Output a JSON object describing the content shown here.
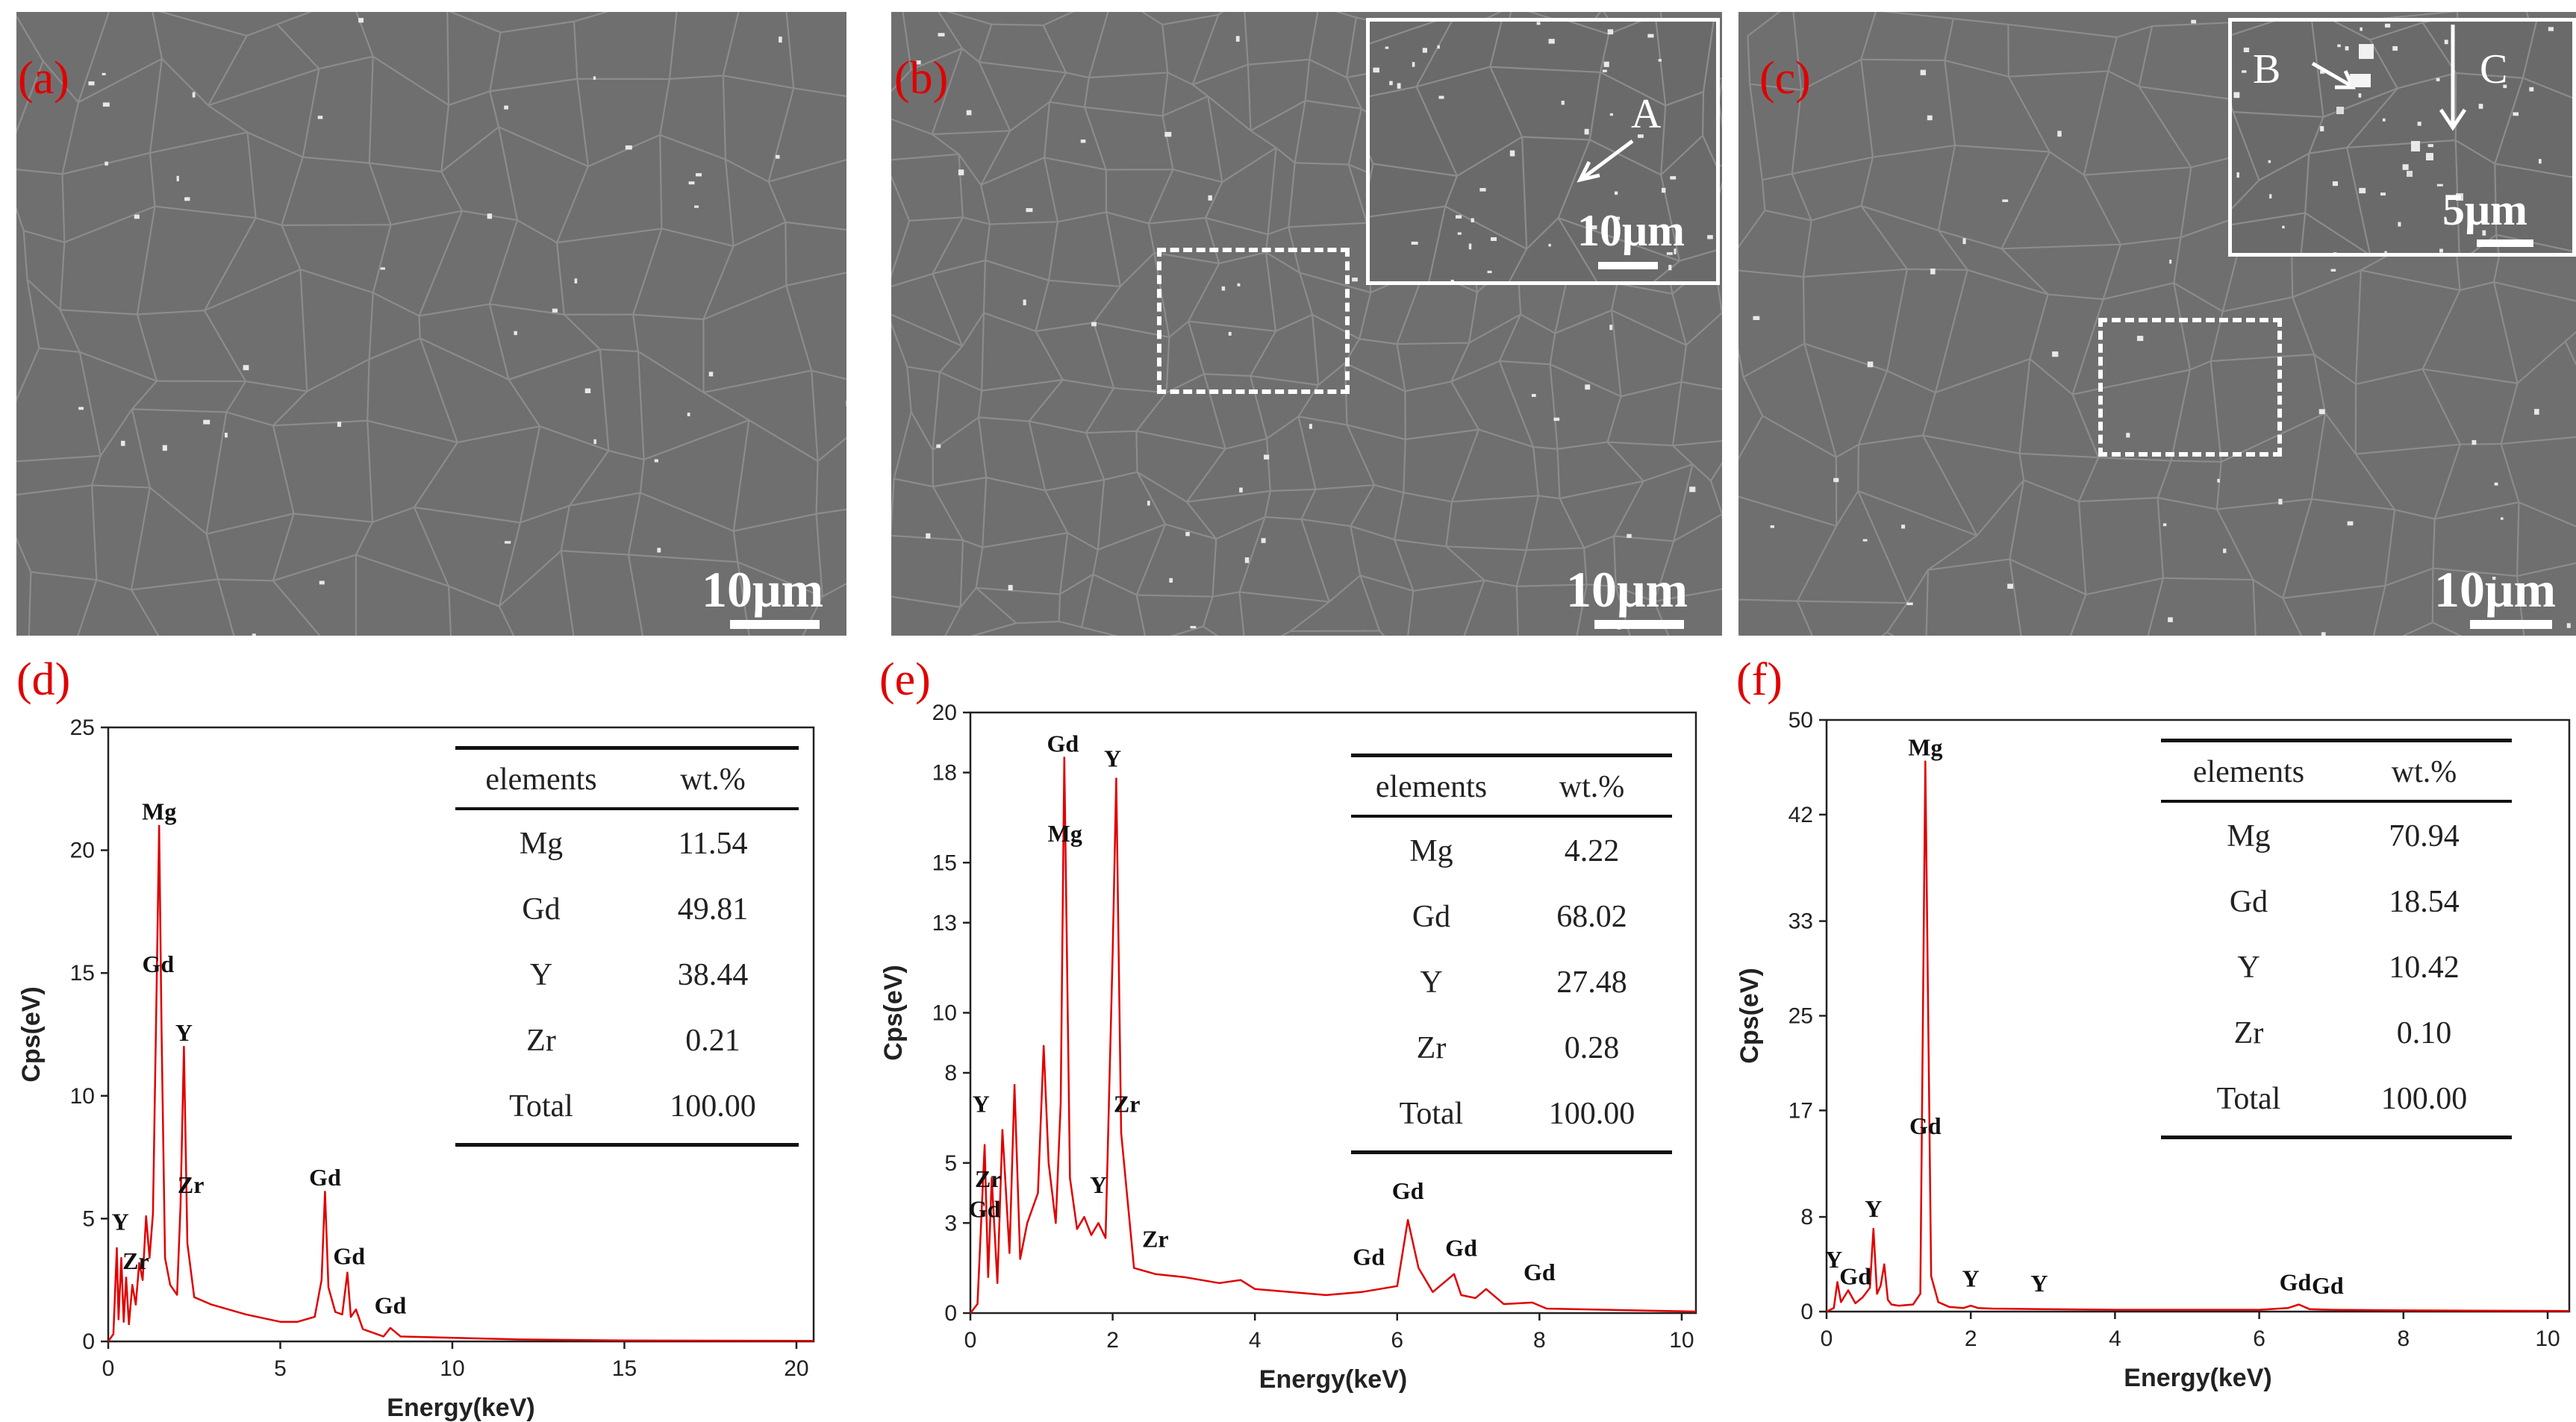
{
  "panels": {
    "a": {
      "label": "(a)",
      "scale_bar": "10μm"
    },
    "b": {
      "label": "(b)",
      "scale_bar": "10μm",
      "inset_scale_bar": "10μm",
      "inset_marker": "A"
    },
    "c": {
      "label": "(c)",
      "scale_bar": "10μm",
      "inset_scale_bar": "5μm",
      "inset_markers": [
        "B",
        "C"
      ]
    },
    "d": {
      "label": "(d)"
    },
    "e": {
      "label": "(e)"
    },
    "f": {
      "label": "(f)"
    }
  },
  "colors": {
    "spectrum": "#e00000",
    "panel_label": "#e00000",
    "sem_background": "#6f6f6f"
  },
  "tables": {
    "header": {
      "col1": "elements",
      "col2": "wt.%"
    },
    "d": [
      {
        "element": "Mg",
        "wt": "11.54"
      },
      {
        "element": "Gd",
        "wt": "49.81"
      },
      {
        "element": "Y",
        "wt": "38.44"
      },
      {
        "element": "Zr",
        "wt": "0.21"
      },
      {
        "element": "Total",
        "wt": "100.00"
      }
    ],
    "e": [
      {
        "element": "Mg",
        "wt": "4.22"
      },
      {
        "element": "Gd",
        "wt": "68.02"
      },
      {
        "element": "Y",
        "wt": "27.48"
      },
      {
        "element": "Zr",
        "wt": "0.28"
      },
      {
        "element": "Total",
        "wt": "100.00"
      }
    ],
    "f": [
      {
        "element": "Mg",
        "wt": "70.94"
      },
      {
        "element": "Gd",
        "wt": "18.54"
      },
      {
        "element": "Y",
        "wt": "10.42"
      },
      {
        "element": "Zr",
        "wt": "0.10"
      },
      {
        "element": "Total",
        "wt": "100.00"
      }
    ]
  },
  "chart_data": [
    {
      "type": "line",
      "panel": "d",
      "xlabel": "Energy(keV)",
      "ylabel": "Cps(eV)",
      "xlim": [
        0,
        20.5
      ],
      "ylim": [
        0,
        25
      ],
      "xticks": [
        0,
        5,
        10,
        15,
        20
      ],
      "yticks": [
        0,
        5,
        10,
        15,
        20,
        25
      ],
      "series": [
        {
          "x": [
            0,
            0.15,
            0.25,
            0.3,
            0.38,
            0.45,
            0.52,
            0.6,
            0.7,
            0.8,
            0.9,
            1.0,
            1.1,
            1.2,
            1.3,
            1.4,
            1.48,
            1.55,
            1.65,
            1.8,
            2.0,
            2.1,
            2.2,
            2.3,
            2.5,
            3,
            4,
            5,
            5.5,
            6.0,
            6.2,
            6.3,
            6.4,
            6.6,
            6.8,
            6.95,
            7.05,
            7.2,
            7.4,
            7.6,
            8.0,
            8.2,
            8.5,
            10,
            12,
            15,
            20.5
          ],
          "y": [
            0,
            0.3,
            3.8,
            0.9,
            3.4,
            0.8,
            2.6,
            0.7,
            2.3,
            1.5,
            3.2,
            2.5,
            5.1,
            3.4,
            5.2,
            13.8,
            21.0,
            12.5,
            3.4,
            2.3,
            1.9,
            5.5,
            12.0,
            4.0,
            1.8,
            1.5,
            1.1,
            0.8,
            0.8,
            1.0,
            2.5,
            6.1,
            2.2,
            1.2,
            1.1,
            2.8,
            1.0,
            1.3,
            0.5,
            0.4,
            0.2,
            0.55,
            0.2,
            0.15,
            0.08,
            0.04,
            0.02
          ]
        }
      ],
      "annotations": [
        {
          "text": "Mg",
          "x": 1.48,
          "y": 21.0
        },
        {
          "text": "Gd",
          "x": 1.45,
          "y": 14.8
        },
        {
          "text": "Y",
          "x": 2.2,
          "y": 12.0
        },
        {
          "text": "Zr",
          "x": 2.4,
          "y": 5.8
        },
        {
          "text": "Y",
          "x": 0.35,
          "y": 4.3
        },
        {
          "text": "Zr",
          "x": 0.8,
          "y": 2.7
        },
        {
          "text": "Gd",
          "x": 6.3,
          "y": 6.1
        },
        {
          "text": "Gd",
          "x": 7.0,
          "y": 2.9
        },
        {
          "text": "Gd",
          "x": 8.2,
          "y": 0.9
        }
      ]
    },
    {
      "type": "line",
      "panel": "e",
      "xlabel": "Energy(keV)",
      "ylabel": "Cps(eV)",
      "xlim": [
        0,
        10.2
      ],
      "ylim": [
        0,
        20
      ],
      "xticks": [
        0,
        2,
        4,
        6,
        8,
        10
      ],
      "yticks": [
        0,
        3,
        5,
        8,
        10,
        13,
        15,
        18,
        20
      ],
      "series": [
        {
          "x": [
            0,
            0.1,
            0.2,
            0.25,
            0.3,
            0.38,
            0.45,
            0.55,
            0.62,
            0.7,
            0.8,
            0.95,
            1.03,
            1.1,
            1.2,
            1.27,
            1.32,
            1.4,
            1.5,
            1.6,
            1.7,
            1.8,
            1.9,
            2.0,
            2.05,
            2.12,
            2.3,
            2.6,
            3,
            3.5,
            3.8,
            4,
            5,
            5.5,
            6.0,
            6.15,
            6.3,
            6.5,
            6.8,
            6.9,
            7.1,
            7.25,
            7.5,
            7.9,
            8.1,
            10.2
          ],
          "y": [
            0,
            0.3,
            5.6,
            1.2,
            4.5,
            1.0,
            6.1,
            2.0,
            7.6,
            1.8,
            3.0,
            4.0,
            8.9,
            5.0,
            3.0,
            7.0,
            18.5,
            4.5,
            2.8,
            3.2,
            2.6,
            3.0,
            2.5,
            12.0,
            17.8,
            6.0,
            1.5,
            1.3,
            1.2,
            1.0,
            1.1,
            0.8,
            0.6,
            0.7,
            0.9,
            3.1,
            1.5,
            0.7,
            1.3,
            0.6,
            0.5,
            0.8,
            0.3,
            0.35,
            0.15,
            0.05
          ]
        }
      ],
      "annotations": [
        {
          "text": "Gd",
          "x": 1.3,
          "y": 18.5
        },
        {
          "text": "Y",
          "x": 2.0,
          "y": 18.0
        },
        {
          "text": "Mg",
          "x": 1.33,
          "y": 15.5
        },
        {
          "text": "Zr",
          "x": 2.2,
          "y": 6.5
        },
        {
          "text": "Y",
          "x": 0.15,
          "y": 6.5
        },
        {
          "text": "Zr",
          "x": 0.25,
          "y": 4.0
        },
        {
          "text": "Gd",
          "x": 0.2,
          "y": 3.0
        },
        {
          "text": "Y",
          "x": 1.8,
          "y": 3.8
        },
        {
          "text": "Zr",
          "x": 2.6,
          "y": 2.0
        },
        {
          "text": "Gd",
          "x": 5.6,
          "y": 1.4
        },
        {
          "text": "Gd",
          "x": 6.15,
          "y": 3.6
        },
        {
          "text": "Gd",
          "x": 6.9,
          "y": 1.7
        },
        {
          "text": "Gd",
          "x": 8.0,
          "y": 0.9
        }
      ]
    },
    {
      "type": "line",
      "panel": "f",
      "xlabel": "Energy(keV)",
      "ylabel": "Cps(eV)",
      "xlim": [
        0,
        10.3
      ],
      "ylim": [
        0,
        50
      ],
      "xticks": [
        0,
        2,
        4,
        6,
        8,
        10
      ],
      "yticks": [
        0,
        8,
        17,
        25,
        33,
        42,
        50
      ],
      "series": [
        {
          "x": [
            0,
            0.1,
            0.15,
            0.2,
            0.3,
            0.4,
            0.5,
            0.6,
            0.65,
            0.7,
            0.75,
            0.8,
            0.85,
            0.9,
            1.0,
            1.2,
            1.3,
            1.37,
            1.45,
            1.55,
            1.7,
            1.9,
            2.0,
            2.1,
            2.3,
            3,
            4,
            5,
            6,
            6.4,
            6.55,
            6.7,
            7.0,
            8,
            10.3
          ],
          "y": [
            0,
            0.3,
            2.5,
            0.8,
            1.8,
            0.7,
            1.2,
            2.0,
            7.0,
            1.5,
            2.2,
            4.0,
            1.0,
            0.6,
            0.5,
            0.6,
            1.5,
            46.5,
            3.0,
            0.8,
            0.4,
            0.3,
            0.5,
            0.3,
            0.25,
            0.2,
            0.15,
            0.15,
            0.15,
            0.3,
            0.6,
            0.2,
            0.15,
            0.1,
            0.05
          ]
        }
      ],
      "annotations": [
        {
          "text": "Mg",
          "x": 1.37,
          "y": 46.5
        },
        {
          "text": "Gd",
          "x": 1.37,
          "y": 14.5
        },
        {
          "text": "Y",
          "x": 0.65,
          "y": 7.5
        },
        {
          "text": "Y",
          "x": 0.1,
          "y": 3.2
        },
        {
          "text": "Gd",
          "x": 0.4,
          "y": 1.8
        },
        {
          "text": "Y",
          "x": 2.0,
          "y": 1.6
        },
        {
          "text": "Y",
          "x": 2.95,
          "y": 1.2
        },
        {
          "text": "Gd",
          "x": 6.5,
          "y": 1.3
        },
        {
          "text": "Gd",
          "x": 6.95,
          "y": 1.0
        }
      ]
    }
  ]
}
